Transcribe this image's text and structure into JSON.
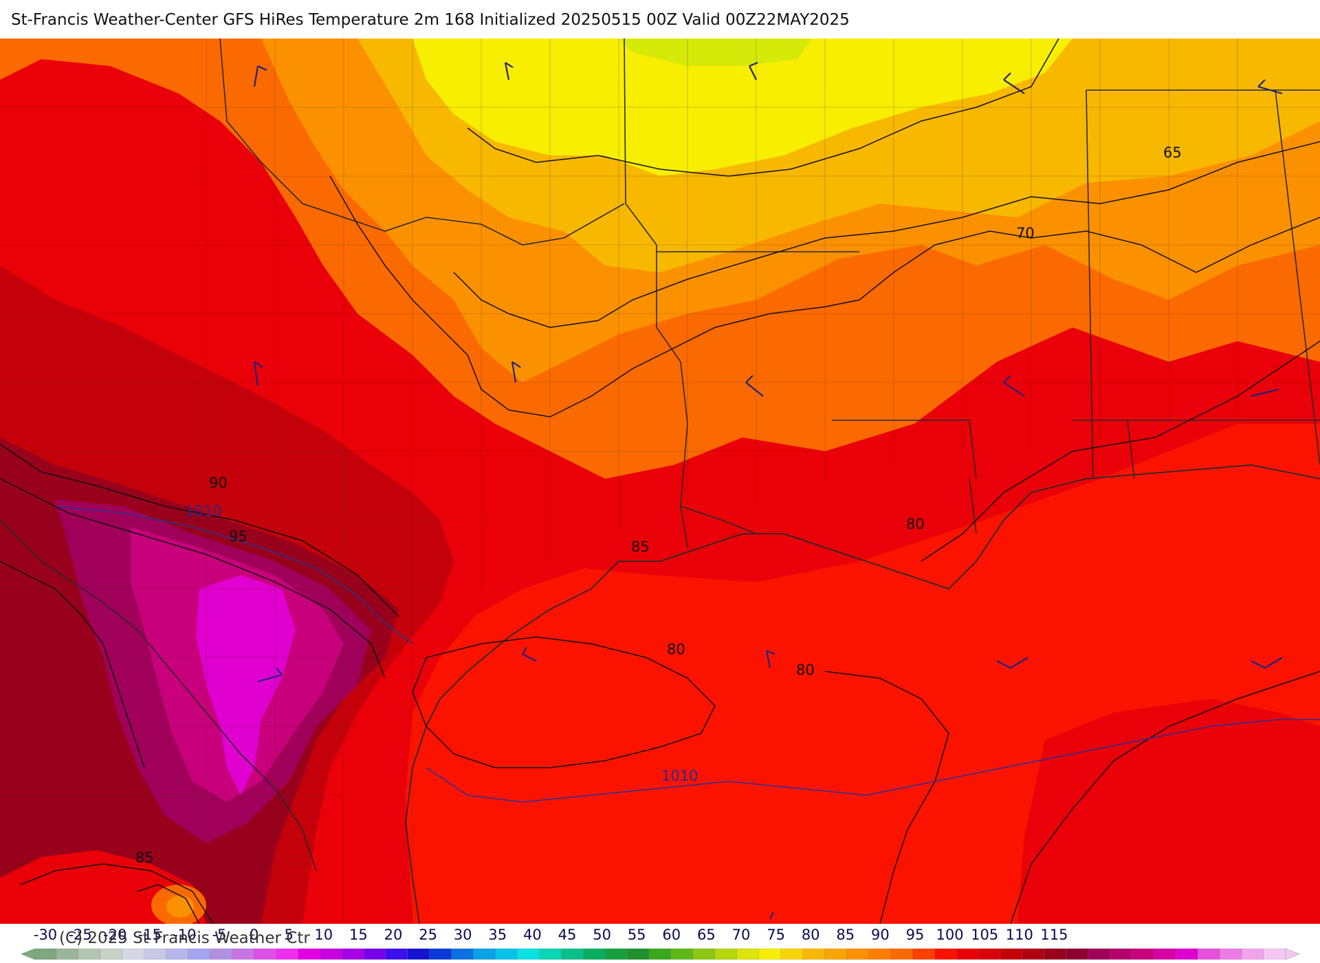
{
  "title": "St-Francis Weather-Center GFS HiRes Temperature 2m  168 Initialized 20250515 00Z Valid 00Z22MAY2025",
  "copyright": "(C) 2025 St Francis Weather Ctr",
  "colors": {
    "t60": "#f7ee00",
    "t65": "#f8b800",
    "t70": "#fc9100",
    "t75": "#fb6a00",
    "t80": "#fb1300",
    "t85": "#ea0008",
    "t90": "#c4000a",
    "t95": "#98001c",
    "t100": "#a0005a",
    "t105": "#c8007c",
    "t110": "#e000d0",
    "isotherm": "#111111",
    "isobar": "#303090",
    "border": "#2a2a2a"
  },
  "map": {
    "isotherm_labels": [
      {
        "id": "iso-65",
        "text": "65"
      },
      {
        "id": "iso-70",
        "text": "70"
      },
      {
        "id": "iso-80-gulf-east",
        "text": "80"
      },
      {
        "id": "iso-80-gulf-west",
        "text": "80"
      },
      {
        "id": "iso-80-gulf-mid",
        "text": "80"
      },
      {
        "id": "iso-85-coast",
        "text": "85"
      },
      {
        "id": "iso-85-mexico",
        "text": "85"
      },
      {
        "id": "iso-90",
        "text": "90"
      },
      {
        "id": "iso-95",
        "text": "95"
      }
    ],
    "isobar_labels": [
      {
        "id": "isobar-1010-west",
        "text": "1010"
      },
      {
        "id": "isobar-1010-gulf",
        "text": "1010"
      }
    ]
  },
  "legend": {
    "ticks": [
      "-30",
      "-25",
      "-20",
      "-15",
      "-10",
      "-5",
      "0",
      "5",
      "10",
      "15",
      "20",
      "25",
      "30",
      "35",
      "40",
      "45",
      "50",
      "55",
      "60",
      "65",
      "70",
      "75",
      "80",
      "85",
      "90",
      "95",
      "100",
      "105",
      "110",
      "115"
    ],
    "swatches": [
      "#7fa77f",
      "#9ab59a",
      "#b2c4b2",
      "#c8d2c8",
      "#d6d6e6",
      "#c8c8e6",
      "#b6b6ea",
      "#a4a4ee",
      "#b290e0",
      "#c874e2",
      "#dc50e6",
      "#ee30ee",
      "#e300e3",
      "#c800e0",
      "#a800e6",
      "#7a00ea",
      "#3a10ec",
      "#1414d0",
      "#0a3ad8",
      "#0c72e2",
      "#08a2e6",
      "#08c4ea",
      "#08e2e2",
      "#08d6b4",
      "#08c088",
      "#08ae60",
      "#18a040",
      "#20902c",
      "#3aa81e",
      "#60b818",
      "#8cc814",
      "#b6d60e",
      "#dce40a",
      "#f7ee00",
      "#f8d400",
      "#f8b800",
      "#faa400",
      "#fc9100",
      "#fc7e00",
      "#fb6a00",
      "#fb4000",
      "#fb1300",
      "#ea0008",
      "#d8000a",
      "#c4000a",
      "#ae0012",
      "#98001c",
      "#8e0030",
      "#a0005a",
      "#b4006c",
      "#c8007c",
      "#d800a6",
      "#e000d0",
      "#e650dc",
      "#ec7ce4",
      "#f0a4ec",
      "#f4c8f2"
    ]
  }
}
